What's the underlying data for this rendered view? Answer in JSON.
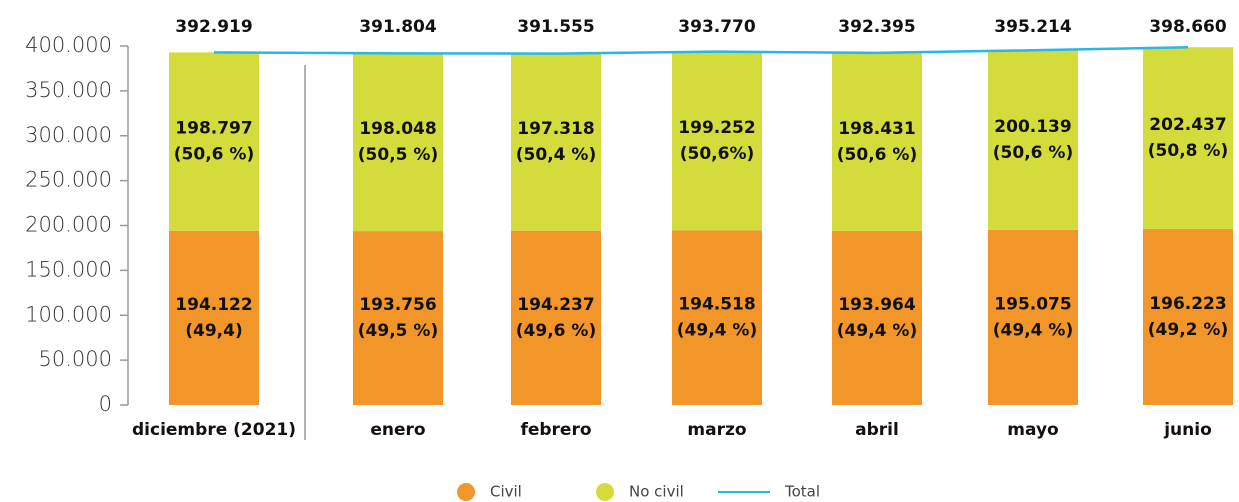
{
  "chart_data": {
    "type": "stacked_bar_line",
    "categories": [
      "diciembre (2021)",
      "enero",
      "febrero",
      "marzo",
      "abril",
      "mayo",
      "junio"
    ],
    "series": [
      {
        "name": "Civil",
        "color": "#f39629",
        "values": [
          194122,
          193756,
          194237,
          194518,
          193964,
          195075,
          196223
        ],
        "value_labels": [
          "194.122",
          "193.756",
          "194.237",
          "194.518",
          "193.964",
          "195.075",
          "196.223"
        ],
        "share_labels": [
          "(49,4)",
          "(49,5 %)",
          "(49,6 %)",
          "(49,4 %)",
          "(49,4 %)",
          "(49,4 %)",
          "(49,2 %)"
        ]
      },
      {
        "name": "No civil",
        "color": "#d4dc3c",
        "values": [
          198797,
          198048,
          197318,
          199252,
          198431,
          200139,
          202437
        ],
        "value_labels": [
          "198.797",
          "198.048",
          "197.318",
          "199.252",
          "198.431",
          "200.139",
          "202.437"
        ],
        "share_labels": [
          "(50,6 %)",
          "(50,5 %)",
          "(50,4 %)",
          "(50,6%)",
          "(50,6 %)",
          "(50,6 %)",
          "(50,8 %)"
        ]
      },
      {
        "name": "Total",
        "color": "#29b6e8",
        "values": [
          392919,
          391804,
          391555,
          393770,
          392395,
          395214,
          398660
        ],
        "value_labels": [
          "392.919",
          "391.804",
          "391.555",
          "393.770",
          "392.395",
          "395.214",
          "398.660"
        ]
      }
    ],
    "ylim": [
      0,
      400000
    ],
    "yticks": [
      0,
      {
        "value": 50000,
        "label": "50.000"
      },
      {
        "value": 100000,
        "label": "100.000"
      },
      {
        "value": 150000,
        "label": "150.000"
      },
      {
        "value": 200000,
        "label": "200.000"
      },
      {
        "value": 250000,
        "label": "250.000"
      },
      {
        "value": 300000,
        "label": "300.000"
      },
      {
        "value": 350000,
        "label": "350.000"
      },
      {
        "value": 400000,
        "label": "400.000"
      }
    ],
    "legend": "bottom"
  }
}
